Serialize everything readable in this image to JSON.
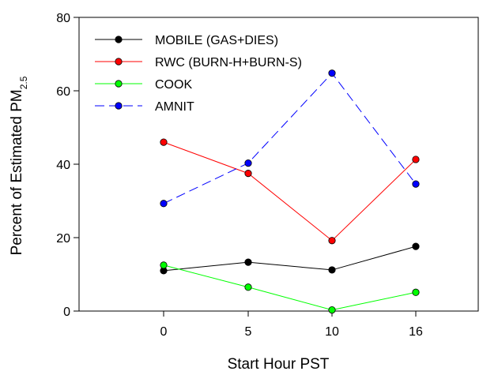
{
  "chart_data": {
    "type": "line",
    "title": "",
    "xlabel": "Start Hour PST",
    "ylabel_main": "Percent of Estimated PM",
    "ylabel_sub": "2.5",
    "categories": [
      "0",
      "5",
      "10",
      "16"
    ],
    "ylim": [
      0,
      80
    ],
    "yticks": [
      0,
      20,
      40,
      60,
      80
    ],
    "grid": false,
    "legend_position": "top-left",
    "series": [
      {
        "name": "MOBILE (GAS+DIES)",
        "values": [
          11.0,
          13.3,
          11.2,
          17.6
        ],
        "color": "#000000",
        "dash": "solid"
      },
      {
        "name": "RWC (BURN-H+BURN-S)",
        "values": [
          46.0,
          37.5,
          19.2,
          41.3
        ],
        "color": "#ff0000",
        "dash": "solid"
      },
      {
        "name": "COOK",
        "values": [
          12.5,
          6.5,
          0.3,
          5.1
        ],
        "color": "#00ff00",
        "dash": "solid"
      },
      {
        "name": "AMNIT",
        "values": [
          29.3,
          40.3,
          64.8,
          34.6
        ],
        "color": "#0000ff",
        "dash": "dashed"
      }
    ]
  }
}
